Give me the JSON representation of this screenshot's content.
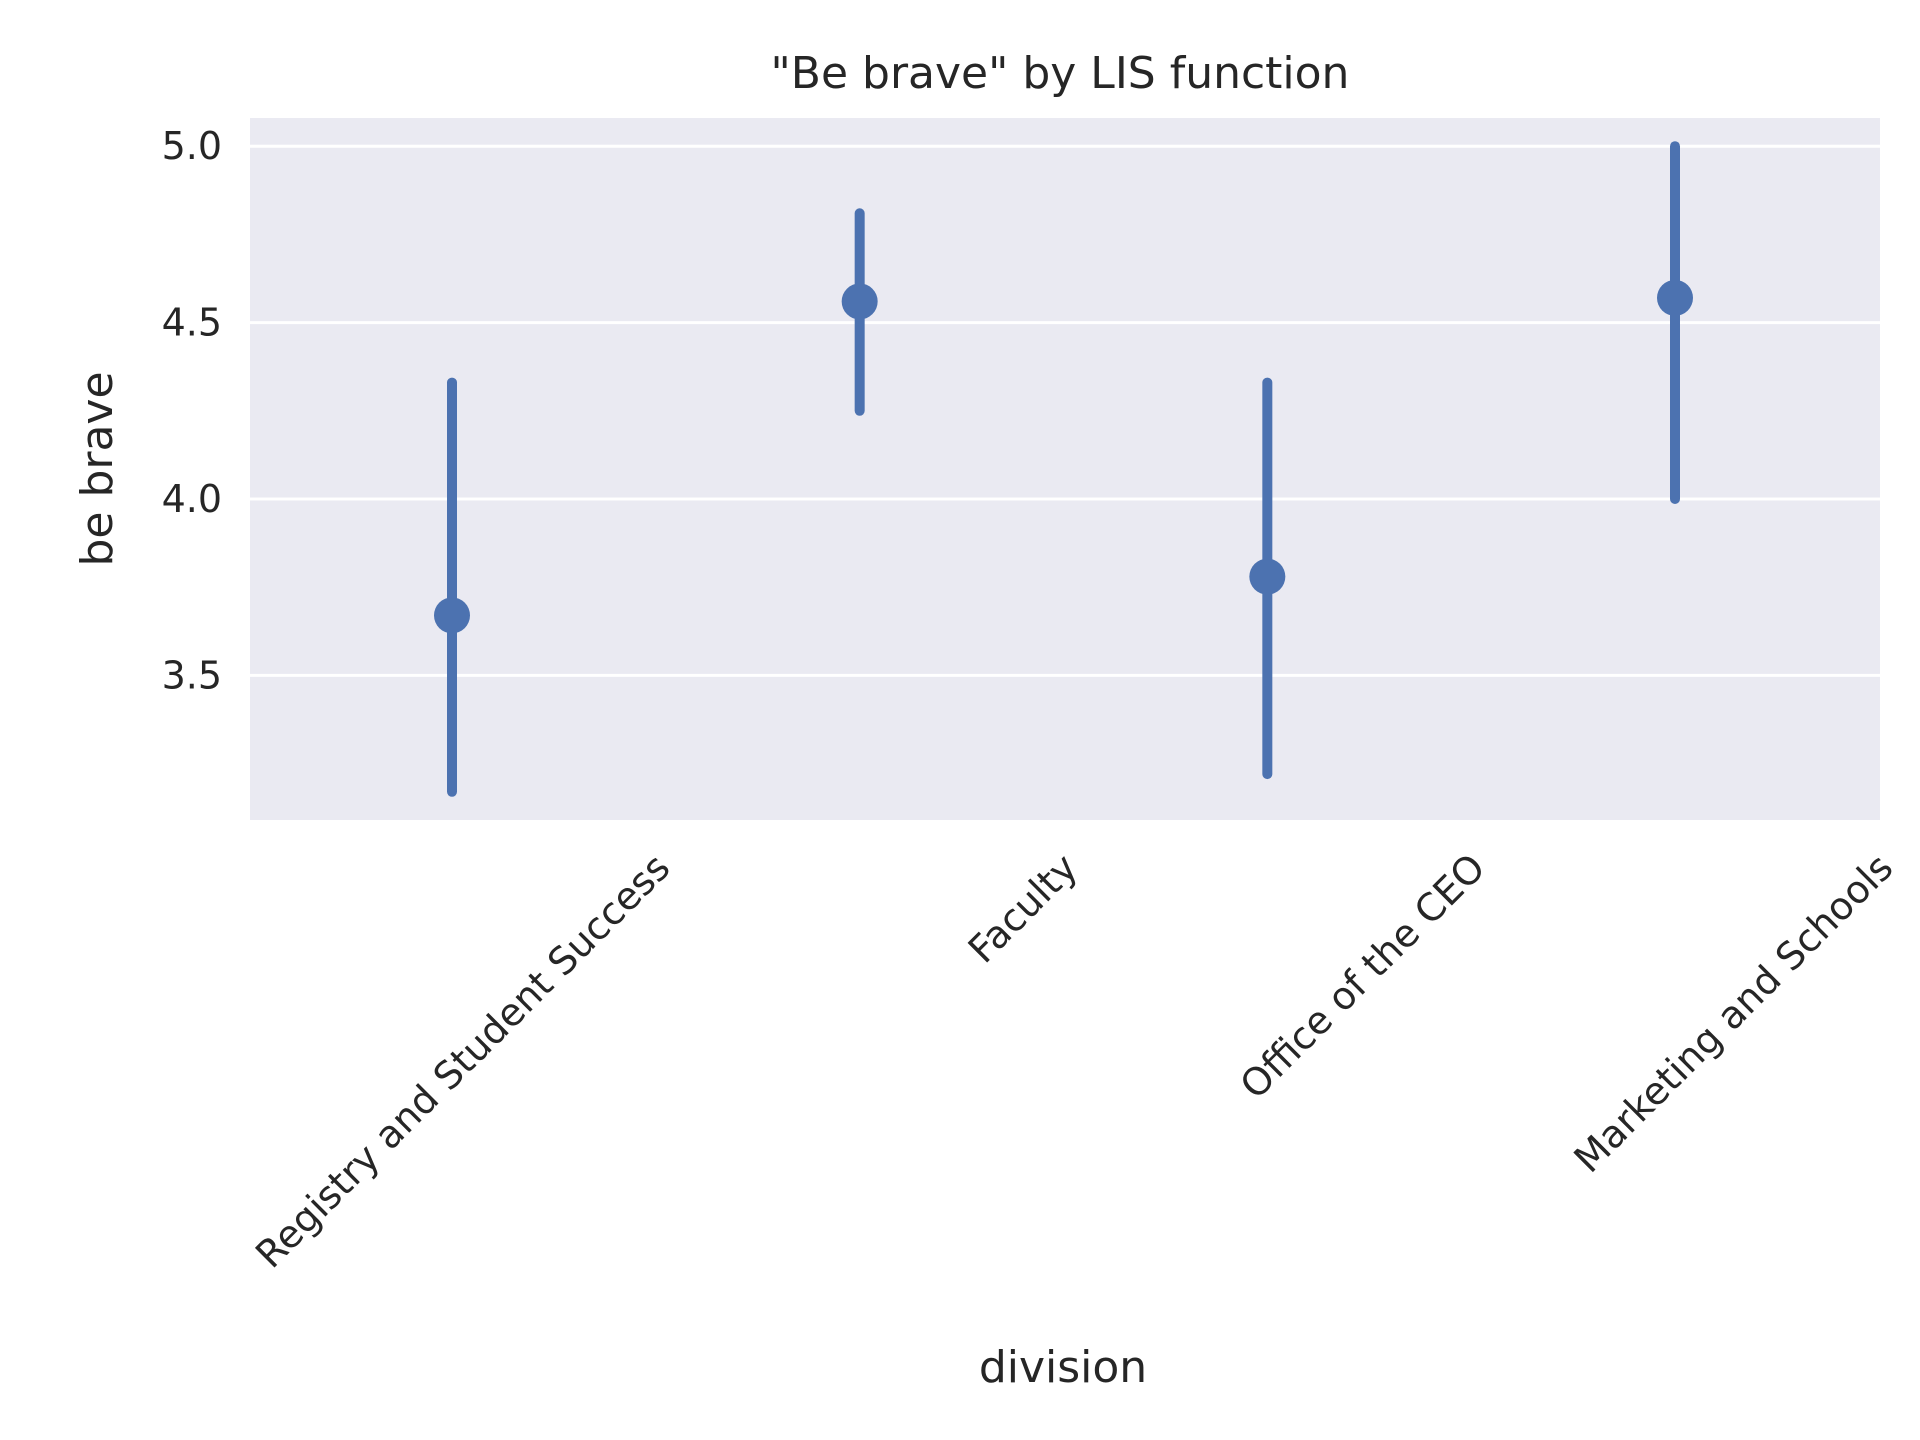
{
  "chart_data": {
    "type": "pointplot",
    "title": "\"Be brave\" by LIS function",
    "xlabel": "division",
    "ylabel": "be brave",
    "categories": [
      "Registry and Student Success",
      "Faculty",
      "Office of the CEO",
      "Marketing and Schools"
    ],
    "values": [
      3.67,
      4.56,
      3.78,
      4.57
    ],
    "ci_low": [
      3.17,
      4.25,
      3.22,
      4.0
    ],
    "ci_high": [
      4.33,
      4.81,
      4.33,
      5.0
    ],
    "yticks": [
      "3.5",
      "4.0",
      "4.5",
      "5.0"
    ],
    "ylim": [
      3.09,
      5.08
    ],
    "color": "#4c72b0",
    "background": "#eaeaf2",
    "grid": true
  }
}
